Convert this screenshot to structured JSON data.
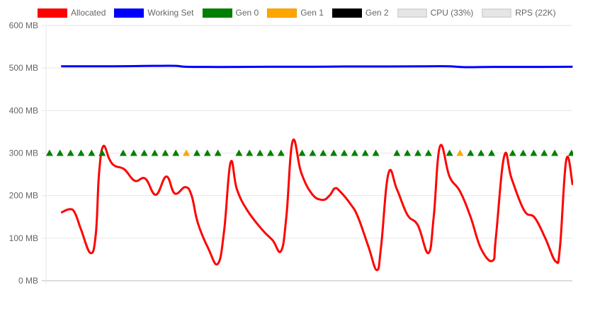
{
  "chart_data": {
    "type": "line",
    "title": "",
    "xlabel": "",
    "ylabel": "",
    "ylim": [
      0,
      600
    ],
    "y_ticks": [
      "0 MB",
      "100 MB",
      "200 MB",
      "300 MB",
      "400 MB",
      "500 MB",
      "600 MB"
    ],
    "y_tick_values": [
      0,
      100,
      200,
      300,
      400,
      500,
      600
    ],
    "grid": true,
    "legend_position": "top",
    "legend": [
      {
        "label": "Allocated",
        "color": "#ff0000",
        "hidden": false
      },
      {
        "label": "Working Set",
        "color": "#0000ff",
        "hidden": false
      },
      {
        "label": "Gen 0",
        "color": "#008000",
        "hidden": false
      },
      {
        "label": "Gen 1",
        "color": "#ffa500",
        "hidden": false
      },
      {
        "label": "Gen 2",
        "color": "#000000",
        "hidden": false
      },
      {
        "label": "CPU (33%)",
        "color": "#e6e6e6",
        "hidden": true
      },
      {
        "label": "RPS (22K)",
        "color": "#e6e6e6",
        "hidden": true
      }
    ],
    "series": [
      {
        "name": "Allocated",
        "color": "#ff0000",
        "points": [
          [
            1.1,
            160
          ],
          [
            1.9,
            168
          ],
          [
            2.4,
            160
          ],
          [
            3.0,
            120
          ],
          [
            3.9,
            65
          ],
          [
            4.4,
            110
          ],
          [
            4.7,
            250
          ],
          [
            5.1,
            316
          ],
          [
            5.7,
            285
          ],
          [
            6.2,
            270
          ],
          [
            7.1,
            262
          ],
          [
            8.1,
            235
          ],
          [
            9.1,
            240
          ],
          [
            10.1,
            202
          ],
          [
            11.1,
            245
          ],
          [
            11.9,
            205
          ],
          [
            12.9,
            220
          ],
          [
            13.5,
            200
          ],
          [
            14.1,
            135
          ],
          [
            15.1,
            75
          ],
          [
            16.0,
            40
          ],
          [
            16.6,
            120
          ],
          [
            17.2,
            278
          ],
          [
            17.8,
            215
          ],
          [
            18.8,
            165
          ],
          [
            20.2,
            120
          ],
          [
            21.2,
            95
          ],
          [
            22.0,
            70
          ],
          [
            22.5,
            150
          ],
          [
            23.1,
            328
          ],
          [
            23.9,
            255
          ],
          [
            24.9,
            205
          ],
          [
            25.9,
            190
          ],
          [
            26.6,
            200
          ],
          [
            27.1,
            217
          ],
          [
            27.6,
            210
          ],
          [
            28.6,
            180
          ],
          [
            29.3,
            150
          ],
          [
            30.3,
            80
          ],
          [
            31.1,
            25
          ],
          [
            31.5,
            80
          ],
          [
            32.2,
            252
          ],
          [
            33.0,
            215
          ],
          [
            34.0,
            155
          ],
          [
            35.0,
            130
          ],
          [
            36.0,
            65
          ],
          [
            36.5,
            150
          ],
          [
            37.1,
            316
          ],
          [
            38.0,
            245
          ],
          [
            39.0,
            210
          ],
          [
            40.0,
            150
          ],
          [
            41.0,
            75
          ],
          [
            42.1,
            47
          ],
          [
            42.4,
            100
          ],
          [
            43.2,
            293
          ],
          [
            43.9,
            240
          ],
          [
            45.1,
            165
          ],
          [
            46.1,
            148
          ],
          [
            47.1,
            100
          ],
          [
            48.1,
            45
          ],
          [
            48.5,
            80
          ],
          [
            49.1,
            285
          ],
          [
            49.7,
            225
          ]
        ]
      },
      {
        "name": "Working Set",
        "color": "#0000ff",
        "points": [
          [
            1.1,
            504
          ],
          [
            3,
            504
          ],
          [
            6,
            504
          ],
          [
            8,
            504.5
          ],
          [
            10,
            505
          ],
          [
            12,
            505
          ],
          [
            12.9,
            503
          ],
          [
            15,
            502.5
          ],
          [
            18,
            502.5
          ],
          [
            21,
            503
          ],
          [
            25,
            503
          ],
          [
            28,
            503.5
          ],
          [
            32,
            503.5
          ],
          [
            36,
            504
          ],
          [
            38,
            504
          ],
          [
            39.5,
            502
          ],
          [
            42,
            502.5
          ],
          [
            46,
            502.5
          ],
          [
            49.7,
            503
          ]
        ]
      },
      {
        "name": "Gen 0",
        "color": "#008000",
        "marker": "triangle",
        "y": 300,
        "x": [
          0,
          1,
          2,
          3,
          4,
          5,
          7,
          8,
          9,
          10,
          11,
          12,
          14,
          15,
          16,
          18,
          19,
          20,
          21,
          22,
          24,
          25,
          26,
          27,
          28,
          29,
          30,
          31,
          33,
          34,
          35,
          36,
          38,
          40,
          41,
          42,
          44,
          45,
          46,
          47,
          48,
          49.6
        ]
      },
      {
        "name": "Gen 1",
        "color": "#ffa500",
        "marker": "triangle",
        "y": 300,
        "x": [
          13,
          39
        ]
      },
      {
        "name": "Gen 2",
        "color": "#000000",
        "marker": "triangle",
        "y": 300,
        "x": []
      }
    ]
  }
}
